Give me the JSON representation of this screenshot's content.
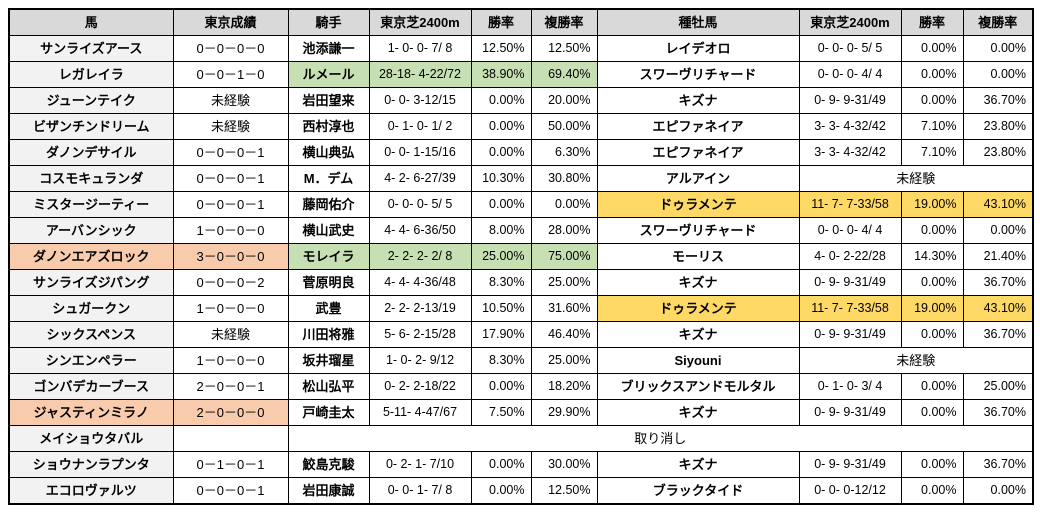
{
  "colors": {
    "header_bg": "#d9d9d9",
    "row_label_bg": "#f2f2f2",
    "green": "#c6e0b4",
    "orange": "#f8cbad",
    "yellow": "#ffd966",
    "border": "#000000"
  },
  "table": {
    "headers": [
      "馬",
      "東京成績",
      "騎手",
      "東京芝2400m",
      "勝率",
      "複勝率",
      "種牡馬",
      "東京芝2400m",
      "勝率",
      "複勝率"
    ],
    "rows": [
      {
        "horse": "サンライズアース",
        "record": "0－0－0－0",
        "jockey": "池添謙一",
        "jcourse": "1- 0- 0- 7/ 8",
        "jwin": "12.50%",
        "jplace": "12.50%",
        "sire": "レイデオロ",
        "scourse": "0- 0- 0- 5/ 5",
        "swin": "0.00%",
        "splace": "0.00%"
      },
      {
        "horse": "レガレイラ",
        "record": "0－0－1－0",
        "jockey": "ルメール",
        "jcourse": "28-18- 4-22/72",
        "jwin": "38.90%",
        "jplace": "69.40%",
        "jockey_hl": "green",
        "sire": "スワーヴリチャード",
        "scourse": "0- 0- 0- 4/ 4",
        "swin": "0.00%",
        "splace": "0.00%"
      },
      {
        "horse": "ジューンテイク",
        "record": "未経験",
        "jockey": "岩田望来",
        "jcourse": "0- 0- 3-12/15",
        "jwin": "0.00%",
        "jplace": "20.00%",
        "sire": "キズナ",
        "scourse": "0- 9- 9-31/49",
        "swin": "0.00%",
        "splace": "36.70%"
      },
      {
        "horse": "ビザンチンドリーム",
        "record": "未経験",
        "jockey": "西村淳也",
        "jcourse": "0- 1- 0- 1/ 2",
        "jwin": "0.00%",
        "jplace": "50.00%",
        "sire": "エピファネイア",
        "scourse": "3- 3- 4-32/42",
        "swin": "7.10%",
        "splace": "23.80%"
      },
      {
        "horse": "ダノンデサイル",
        "record": "0－0－0－1",
        "jockey": "横山典弘",
        "jcourse": "0- 0- 1-15/16",
        "jwin": "0.00%",
        "jplace": "6.30%",
        "sire": "エピファネイア",
        "scourse": "3- 3- 4-32/42",
        "swin": "7.10%",
        "splace": "23.80%"
      },
      {
        "horse": "コスモキュランダ",
        "record": "0－0－0－1",
        "jockey": "M．デム",
        "jcourse": "4- 2- 6-27/39",
        "jwin": "10.30%",
        "jplace": "30.80%",
        "sire": "アルアイン",
        "sire_note": "未経験"
      },
      {
        "horse": "ミスタージーティー",
        "record": "0－0－0－1",
        "jockey": "藤岡佑介",
        "jcourse": "0- 0- 0- 5/ 5",
        "jwin": "0.00%",
        "jplace": "0.00%",
        "sire": "ドゥラメンテ",
        "scourse": "11- 7- 7-33/58",
        "swin": "19.00%",
        "splace": "43.10%",
        "sire_hl": "yellow"
      },
      {
        "horse": "アーバンシック",
        "record": "1－0－0－0",
        "jockey": "横山武史",
        "jcourse": "4- 4- 6-36/50",
        "jwin": "8.00%",
        "jplace": "28.00%",
        "sire": "スワーヴリチャード",
        "scourse": "0- 0- 0- 4/ 4",
        "swin": "0.00%",
        "splace": "0.00%"
      },
      {
        "horse": "ダノンエアズロック",
        "record": "3－0－0－0",
        "horse_hl": "orange",
        "jockey": "モレイラ",
        "jcourse": "2- 2- 2- 2/ 8",
        "jwin": "25.00%",
        "jplace": "75.00%",
        "jockey_hl": "green",
        "sire": "モーリス",
        "scourse": "4- 0- 2-22/28",
        "swin": "14.30%",
        "splace": "21.40%"
      },
      {
        "horse": "サンライズジパング",
        "record": "0－0－0－2",
        "jockey": "菅原明良",
        "jcourse": "4- 4- 4-36/48",
        "jwin": "8.30%",
        "jplace": "25.00%",
        "sire": "キズナ",
        "scourse": "0- 9- 9-31/49",
        "swin": "0.00%",
        "splace": "36.70%"
      },
      {
        "horse": "シュガークン",
        "record": "1－0－0－0",
        "jockey": "武豊",
        "jcourse": "2- 2- 2-13/19",
        "jwin": "10.50%",
        "jplace": "31.60%",
        "sire": "ドゥラメンテ",
        "scourse": "11- 7- 7-33/58",
        "swin": "19.00%",
        "splace": "43.10%",
        "sire_hl": "yellow"
      },
      {
        "horse": "シックスペンス",
        "record": "未経験",
        "jockey": "川田将雅",
        "jcourse": "5- 6- 2-15/28",
        "jwin": "17.90%",
        "jplace": "46.40%",
        "sire": "キズナ",
        "scourse": "0- 9- 9-31/49",
        "swin": "0.00%",
        "splace": "36.70%"
      },
      {
        "horse": "シンエンペラー",
        "record": "1－0－0－0",
        "jockey": "坂井瑠星",
        "jcourse": "1- 0- 2- 9/12",
        "jwin": "8.30%",
        "jplace": "25.00%",
        "sire": "Siyouni",
        "sire_note": "未経験"
      },
      {
        "horse": "ゴンバデカーブース",
        "record": "2－0－0－1",
        "jockey": "松山弘平",
        "jcourse": "0- 2- 2-18/22",
        "jwin": "0.00%",
        "jplace": "18.20%",
        "sire": "ブリックスアンドモルタル",
        "scourse": "0- 1- 0- 3/ 4",
        "swin": "0.00%",
        "splace": "25.00%"
      },
      {
        "horse": "ジャスティンミラノ",
        "record": "2－0－0－0",
        "horse_hl": "orange",
        "jockey": "戸崎圭太",
        "jcourse": "5-11- 4-47/67",
        "jwin": "7.50%",
        "jplace": "29.90%",
        "sire": "キズナ",
        "scourse": "0- 9- 9-31/49",
        "swin": "0.00%",
        "splace": "36.70%"
      },
      {
        "horse": "メイショウタバル",
        "record": "",
        "cancelled": true,
        "cancel_text": "取り消し"
      },
      {
        "horse": "ショウナンラプンタ",
        "record": "0－1－0－1",
        "jockey": "鮫島克駿",
        "jcourse": "0- 2- 1- 7/10",
        "jwin": "0.00%",
        "jplace": "30.00%",
        "sire": "キズナ",
        "scourse": "0- 9- 9-31/49",
        "swin": "0.00%",
        "splace": "36.70%"
      },
      {
        "horse": "エコロヴァルツ",
        "record": "0－0－0－1",
        "jockey": "岩田康誠",
        "jcourse": "0- 0- 1- 7/ 8",
        "jwin": "0.00%",
        "jplace": "12.50%",
        "sire": "ブラックタイド",
        "scourse": "0- 0- 0-12/12",
        "swin": "0.00%",
        "splace": "0.00%"
      }
    ]
  }
}
